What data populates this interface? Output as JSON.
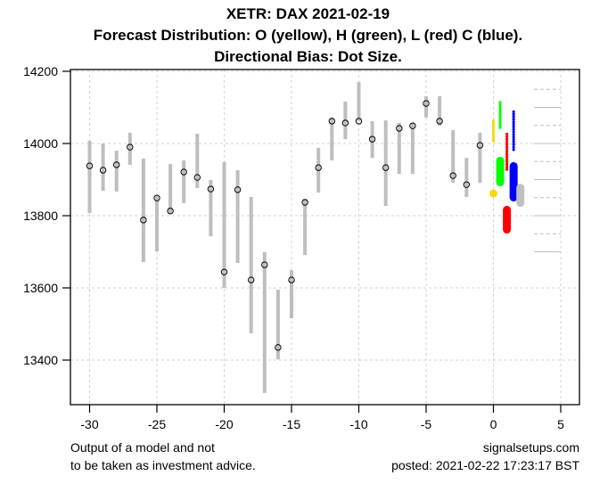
{
  "chart_data": {
    "type": "range-dot",
    "title": "XETR: DAX 2021-02-19",
    "subtitle": "Forecast Distribution: O (yellow), H (green), L (red) C (blue).",
    "subtitle2": "Directional Bias: Dot Size.",
    "xlabel": "",
    "ylabel": "",
    "xlim": [
      -32,
      6.5
    ],
    "ylim": [
      13290,
      14210
    ],
    "x_ticks": [
      -30,
      -25,
      -20,
      -15,
      -10,
      -5,
      0,
      5
    ],
    "x_tick_labels": [
      "-30",
      "-25",
      "-20",
      "-15",
      "-10",
      "-5",
      "0",
      "5"
    ],
    "y_ticks": [
      13400,
      13600,
      13800,
      14000,
      14200
    ],
    "y_tick_labels": [
      "13400",
      "13600",
      "13800",
      "14000",
      "14200"
    ],
    "grid": true,
    "history": [
      {
        "x": -30,
        "low": 13807,
        "high": 14007,
        "close": 13938
      },
      {
        "x": -29,
        "low": 13869,
        "high": 14000,
        "close": 13926
      },
      {
        "x": -28,
        "low": 13867,
        "high": 13980,
        "close": 13941
      },
      {
        "x": -27,
        "low": 13941,
        "high": 14030,
        "close": 13990
      },
      {
        "x": -26,
        "low": 13672,
        "high": 13958,
        "close": 13788
      },
      {
        "x": -25,
        "low": 13701,
        "high": 13854,
        "close": 13849
      },
      {
        "x": -24,
        "low": 13805,
        "high": 13943,
        "close": 13813
      },
      {
        "x": -23,
        "low": 13835,
        "high": 13953,
        "close": 13921
      },
      {
        "x": -22,
        "low": 13877,
        "high": 14027,
        "close": 13906
      },
      {
        "x": -21,
        "low": 13743,
        "high": 13899,
        "close": 13874
      },
      {
        "x": -20,
        "low": 13600,
        "high": 13948,
        "close": 13644
      },
      {
        "x": -19,
        "low": 13669,
        "high": 13926,
        "close": 13872
      },
      {
        "x": -18,
        "low": 13474,
        "high": 13852,
        "close": 13622
      },
      {
        "x": -17,
        "low": 13309,
        "high": 13699,
        "close": 13664
      },
      {
        "x": -16,
        "low": 13402,
        "high": 13595,
        "close": 13435
      },
      {
        "x": -15,
        "low": 13516,
        "high": 13649,
        "close": 13622
      },
      {
        "x": -14,
        "low": 13691,
        "high": 13847,
        "close": 13837
      },
      {
        "x": -13,
        "low": 13864,
        "high": 13988,
        "close": 13933
      },
      {
        "x": -12,
        "low": 13953,
        "high": 14072,
        "close": 14062
      },
      {
        "x": -11,
        "low": 14012,
        "high": 14116,
        "close": 14057
      },
      {
        "x": -10,
        "low": 14062,
        "high": 14170,
        "close": 14062
      },
      {
        "x": -9,
        "low": 13960,
        "high": 14062,
        "close": 14012
      },
      {
        "x": -8,
        "low": 13827,
        "high": 14064,
        "close": 13933
      },
      {
        "x": -7,
        "low": 13916,
        "high": 14057,
        "close": 14042
      },
      {
        "x": -6,
        "low": 13916,
        "high": 14057,
        "close": 14049
      },
      {
        "x": -5,
        "low": 14072,
        "high": 14131,
        "close": 14111
      },
      {
        "x": -4,
        "low": 14049,
        "high": 14131,
        "close": 14062
      },
      {
        "x": -3,
        "low": 13891,
        "high": 14037,
        "close": 13911
      },
      {
        "x": -2,
        "low": 13852,
        "high": 13960,
        "close": 13886
      },
      {
        "x": -1,
        "low": 13891,
        "high": 14030,
        "close": 13995
      }
    ],
    "forecast": [
      {
        "name": "Open",
        "color": "#FFD700",
        "x": 0,
        "small_range": [
          14007,
          14064
        ],
        "large_range": [
          13860,
          13863
        ]
      },
      {
        "name": "High",
        "color": "#00FF00",
        "x": 0.5,
        "small_range": [
          14044,
          14119
        ],
        "large_range": [
          13889,
          13956
        ]
      },
      {
        "name": "Low",
        "color": "#FF0000",
        "x": 1,
        "small_range": [
          13928,
          14032
        ],
        "large_range": [
          13758,
          13820
        ]
      },
      {
        "name": "Close",
        "color": "#0000FF",
        "x": 1.5,
        "small_range": [
          13983,
          14089
        ],
        "large_range": [
          13847,
          13941
        ]
      }
    ],
    "current_range": {
      "x": 2,
      "low": 13832,
      "high": 13881,
      "color": "#C0C0C0"
    },
    "reference_levels": [
      {
        "value": 14150,
        "style": "dashed"
      },
      {
        "value": 14100,
        "style": "solid"
      },
      {
        "value": 14050,
        "style": "dashed"
      },
      {
        "value": 14000,
        "style": "solid"
      },
      {
        "value": 13950,
        "style": "dashed"
      },
      {
        "value": 13900,
        "style": "solid"
      },
      {
        "value": 13850,
        "style": "dashed"
      },
      {
        "value": 13800,
        "style": "solid"
      },
      {
        "value": 13750,
        "style": "dashed"
      },
      {
        "value": 13700,
        "style": "solid"
      }
    ],
    "colors": {
      "bar": "#BEBEBE",
      "grid": "#D3D3D3",
      "axis": "#000000"
    }
  },
  "footer": {
    "disclaimer_line1": "Output of a model and not",
    "disclaimer_line2": "to be taken as investment advice.",
    "site": "signalsetups.com",
    "posted": "posted: 2021-02-22 17:23:17 BST"
  }
}
